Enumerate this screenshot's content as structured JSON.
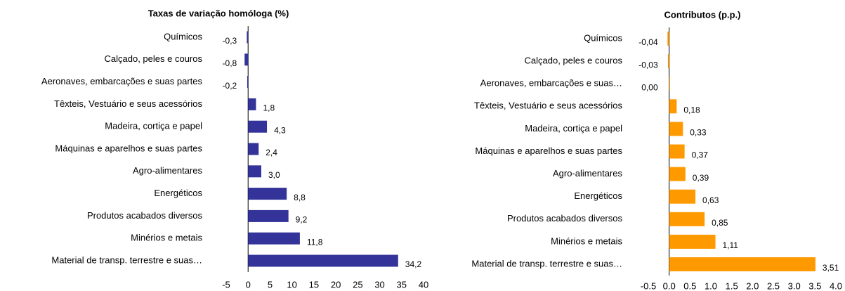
{
  "chart_data": [
    {
      "type": "hbar",
      "title": "Taxas de variação homóloga (%)",
      "categories": [
        "Químicos",
        "Calçado, peles e couros",
        "Aeronaves, embarcações e suas partes",
        "Têxteis, Vestuário e seus acessórios",
        "Madeira, cortiça e papel",
        "Máquinas e aparelhos e suas partes",
        "Agro-alimentares",
        "Energéticos",
        "Produtos acabados diversos",
        "Minérios e metais",
        "Material de transp. terrestre e suas…"
      ],
      "values": [
        -0.3,
        -0.8,
        -0.2,
        1.8,
        4.3,
        2.4,
        3.0,
        8.8,
        9.2,
        11.8,
        34.2
      ],
      "value_labels": [
        "-0,3",
        "-0,8",
        "-0,2",
        "1,8",
        "4,3",
        "2,4",
        "3,0",
        "8,8",
        "9,2",
        "11,8",
        "34,2"
      ],
      "color": "#333399",
      "xlim": [
        -5,
        40
      ],
      "xticks": [
        -5,
        0,
        5,
        10,
        15,
        20,
        25,
        30,
        35,
        40
      ]
    },
    {
      "type": "hbar",
      "title": "Contributos (p.p.)",
      "categories": [
        "Químicos",
        "Calçado, peles e couros",
        "Aeronaves, embarcações e suas…",
        "Têxteis, Vestuário e seus acessórios",
        "Madeira, cortiça e papel",
        "Máquinas e aparelhos e suas partes",
        "Agro-alimentares",
        "Energéticos",
        "Produtos acabados diversos",
        "Minérios e metais",
        "Material de transp. terrestre e suas…"
      ],
      "values": [
        -0.04,
        -0.03,
        0.0,
        0.18,
        0.33,
        0.37,
        0.39,
        0.63,
        0.85,
        1.11,
        3.51
      ],
      "value_labels": [
        "-0,04",
        "-0,03",
        "0,00",
        "0,18",
        "0,33",
        "0,37",
        "0,39",
        "0,63",
        "0,85",
        "1,11",
        "3,51"
      ],
      "color": "#ff9900",
      "xlim": [
        -0.5,
        4.0
      ],
      "xticks": [
        -0.5,
        {
          "value": 0,
          "label": "0.0"
        },
        0.5,
        {
          "value": 1,
          "label": "1.0"
        },
        1.5,
        {
          "value": 2,
          "label": "2.0"
        },
        2.5,
        {
          "value": 3,
          "label": "3.0"
        },
        3.5,
        {
          "value": 4,
          "label": "4.0"
        }
      ]
    }
  ]
}
